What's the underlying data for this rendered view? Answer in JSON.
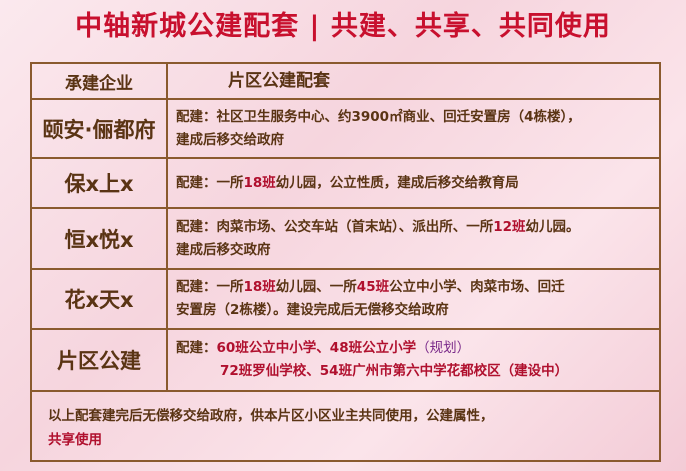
{
  "title": "中轴新城公建配套 | 共建、共享、共同使用",
  "header": {
    "col1": "承建企业",
    "col2": "片区公建配套"
  },
  "rows": [
    {
      "company": "颐安·俪都府",
      "p1": "配建：社区卫生服务中心、约3900㎡商业、回迁安置房（4栋楼），",
      "p2": "建成后移交给政府"
    },
    {
      "company": "保x上x",
      "a": "配建：一所",
      "b": "18班",
      "c": "幼儿园，公立性质，建成后移交给教育局"
    },
    {
      "company": "恒x悦x",
      "a": "配建：肉菜市场、公交车站（首末站）、派出所、一所",
      "b": "12班",
      "c": "幼儿园。",
      "p2": "建成后移交政府"
    },
    {
      "company": "花x天x",
      "a": "配建：一所",
      "b": "18班",
      "c": "幼儿园、一所",
      "d": "45班",
      "e": "公立中小学、肉菜市场、回迁",
      "p2": "安置房（2栋楼）。建设完成后无偿移交给政府"
    },
    {
      "company": "片区公建",
      "a": "配建：",
      "b": "60班",
      "c": "公立中小学、",
      "d": "48班",
      "e": "公立小学",
      "f": "（规划）",
      "line2": "72班罗仙学校、54班广州市第六中学花都校区（建设中）"
    }
  ],
  "footer": {
    "text": "以上配套建完后无偿移交给政府，供本片区小区业主共同使用，公建属性，",
    "text2": "共享使用"
  },
  "colors": {
    "title": "#c8102e",
    "highlight": "#b0102e",
    "border": "#8a5a2e",
    "text": "#5a3414"
  }
}
